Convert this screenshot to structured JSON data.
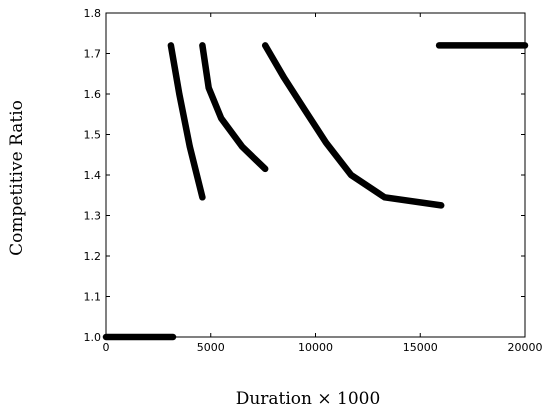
{
  "chart_data": {
    "type": "line",
    "title": "",
    "xlabel": "Duration × 1000",
    "ylabel": "Competitive Ratio",
    "xlim": [
      0,
      20000
    ],
    "ylim": [
      1.0,
      1.8
    ],
    "xticks": [
      0,
      5000,
      10000,
      15000,
      20000
    ],
    "yticks": [
      1.0,
      1.1,
      1.2,
      1.3,
      1.4,
      1.5,
      1.6,
      1.7,
      1.8
    ],
    "xtick_labels": [
      "0",
      "5000",
      "10000",
      "15000",
      "20000"
    ],
    "ytick_labels": [
      "1.0",
      "1.1",
      "1.2",
      "1.3",
      "1.4",
      "1.5",
      "1.6",
      "1.7",
      "1.8"
    ],
    "grid": false,
    "line_color": "#000000",
    "series": [
      {
        "x": [
          0,
          3200
        ],
        "y": [
          1.0,
          1.0
        ]
      },
      {
        "x": [
          3100,
          3500,
          4000,
          4600
        ],
        "y": [
          1.72,
          1.6,
          1.47,
          1.345
        ]
      },
      {
        "x": [
          4600,
          4900,
          5500,
          6500,
          7600
        ],
        "y": [
          1.72,
          1.615,
          1.54,
          1.47,
          1.415
        ]
      },
      {
        "x": [
          7600,
          8500,
          9500,
          10500,
          11700,
          13300,
          16000
        ],
        "y": [
          1.72,
          1.64,
          1.56,
          1.48,
          1.4,
          1.345,
          1.325
        ]
      },
      {
        "x": [
          15900,
          20000
        ],
        "y": [
          1.72,
          1.72
        ]
      }
    ]
  }
}
